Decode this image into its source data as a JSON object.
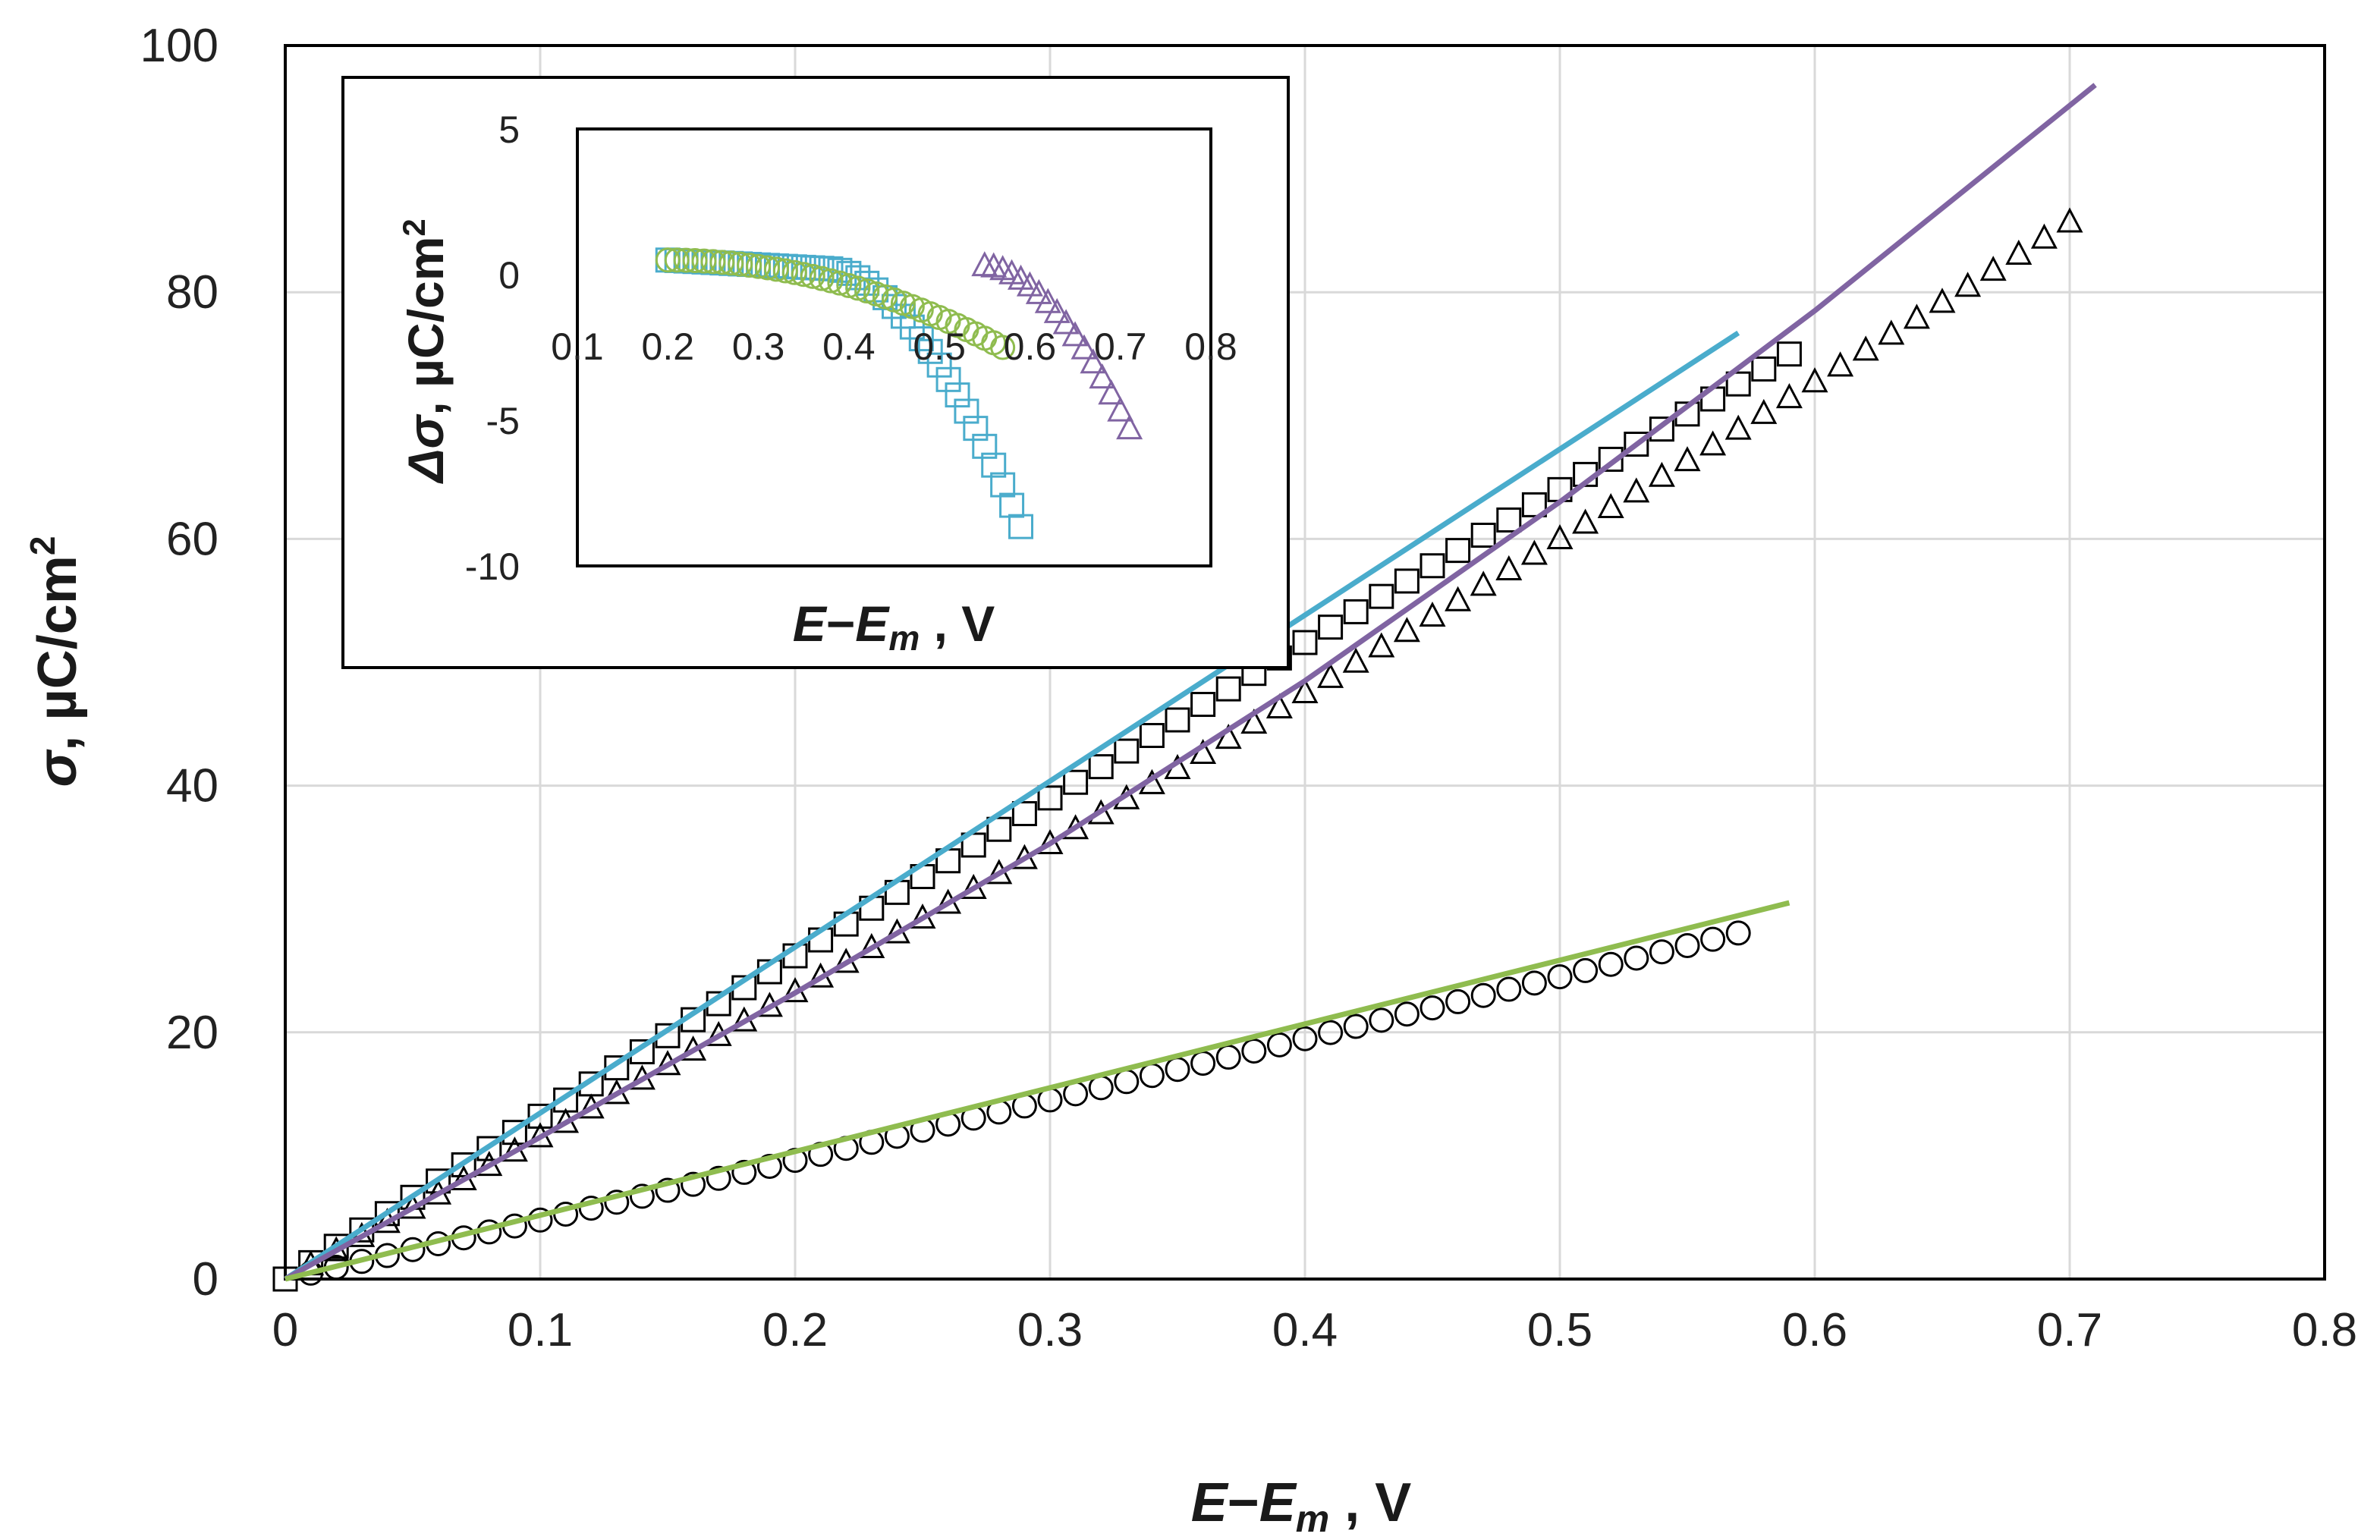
{
  "chart_data": {
    "type": "scatter",
    "main": {
      "xlabel": {
        "main": "E",
        "dash": "−",
        "sub_main": "E",
        "sub": "m",
        "tail": " , V"
      },
      "ylabel": {
        "sym": "σ",
        "unit": ", µC/cm",
        "sup": "2"
      },
      "xlim": [
        0,
        0.8
      ],
      "ylim": [
        0,
        100
      ],
      "xticks": [
        "0",
        "0.1",
        "0.2",
        "0.3",
        "0.4",
        "0.5",
        "0.6",
        "0.7",
        "0.8"
      ],
      "yticks": [
        "0",
        "20",
        "40",
        "60",
        "80",
        "100"
      ],
      "grid": true,
      "series": [
        {
          "name": "squares (data)",
          "kind": "markers",
          "marker": "square",
          "color": "#000000",
          "x_start": 0,
          "x_end": 0.59,
          "n": 60,
          "fn": "sq"
        },
        {
          "name": "triangles (data)",
          "kind": "markers",
          "marker": "triangle",
          "color": "#000000",
          "x_start": 0.01,
          "x_end": 0.7,
          "n": 70,
          "fn": "tri"
        },
        {
          "name": "circles (data)",
          "kind": "markers",
          "marker": "circle",
          "color": "#000000",
          "x_start": 0.01,
          "x_end": 0.57,
          "n": 57,
          "fn": "circ"
        },
        {
          "name": "fit (blue)",
          "kind": "line",
          "color": "#4aaccc",
          "x": [
            0.0,
            0.57
          ],
          "y": [
            0.0,
            76.7
          ]
        },
        {
          "name": "fit (purple)",
          "kind": "line",
          "color": "#8064a2",
          "x": [
            0.0,
            0.1,
            0.2,
            0.3,
            0.4,
            0.5,
            0.6,
            0.71
          ],
          "y": [
            0.0,
            11.5,
            23.2,
            35.3,
            48.5,
            63.0,
            78.5,
            96.8
          ]
        },
        {
          "name": "fit (green)",
          "kind": "line",
          "color": "#8fbc4f",
          "x": [
            0.0,
            0.59
          ],
          "y": [
            0.0,
            30.5
          ]
        }
      ]
    },
    "inset": {
      "xlabel": {
        "main": "E",
        "dash": "−",
        "sub_main": "E",
        "sub": "m",
        "tail": " , V"
      },
      "ylabel": {
        "sym": "Δσ",
        "unit": ", µC/cm",
        "sup": "2"
      },
      "xlim": [
        0.1,
        0.8
      ],
      "ylim": [
        -10,
        5
      ],
      "xticks": [
        "0.1",
        "0.2",
        "0.3",
        "0.4",
        "0.5",
        "0.6",
        "0.7",
        "0.8"
      ],
      "yticks": [
        "-10",
        "-5",
        "0",
        "5"
      ],
      "grid": false,
      "series": [
        {
          "name": "residual squares",
          "marker": "square",
          "color": "#4aaccc",
          "x_start": 0.2,
          "x_end": 0.59,
          "n": 40,
          "fn": "dsq"
        },
        {
          "name": "residual triangles",
          "marker": "triangle",
          "color": "#8064a2",
          "x_start": 0.55,
          "x_end": 0.71,
          "n": 17,
          "fn": "dtri"
        },
        {
          "name": "residual circles",
          "marker": "circle",
          "color": "#8fbc4f",
          "x_start": 0.2,
          "x_end": 0.57,
          "n": 38,
          "fn": "dcirc"
        }
      ]
    }
  }
}
